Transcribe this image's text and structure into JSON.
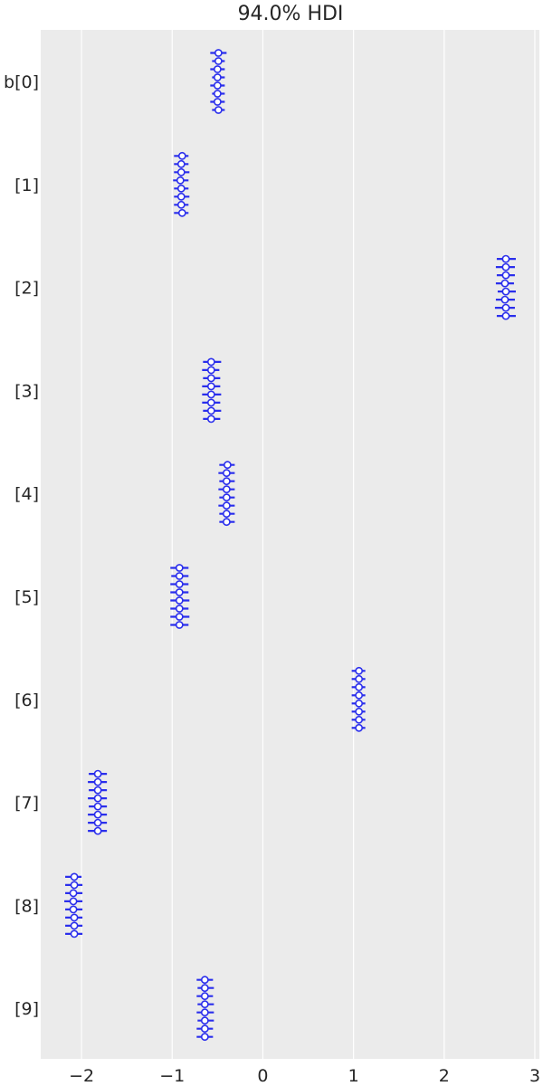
{
  "chart_data": {
    "type": "forest",
    "title": "94.0% HDI",
    "xlabel": "",
    "ylabel": "",
    "xlim": [
      -2.45,
      3.05
    ],
    "x_ticks": [
      {
        "value": -2,
        "label": "−2"
      },
      {
        "value": -1,
        "label": "−1"
      },
      {
        "value": 0,
        "label": "0"
      },
      {
        "value": 1,
        "label": "1"
      },
      {
        "value": 2,
        "label": "2"
      },
      {
        "value": 3,
        "label": "3"
      }
    ],
    "grid": true,
    "background_color": "#EBEBEB",
    "grid_color": "#FFFFFF",
    "marker_color": "#2A2EEC",
    "parameters": [
      {
        "label": "b[0]",
        "chains": [
          {
            "mean": -0.49,
            "hdi": [
              -0.58,
              -0.4
            ]
          },
          {
            "mean": -0.49,
            "hdi": [
              -0.56,
              -0.42
            ]
          },
          {
            "mean": -0.5,
            "hdi": [
              -0.58,
              -0.42
            ]
          },
          {
            "mean": -0.5,
            "hdi": [
              -0.56,
              -0.42
            ]
          },
          {
            "mean": -0.5,
            "hdi": [
              -0.58,
              -0.42
            ]
          },
          {
            "mean": -0.5,
            "hdi": [
              -0.56,
              -0.42
            ]
          },
          {
            "mean": -0.5,
            "hdi": [
              -0.58,
              -0.42
            ]
          },
          {
            "mean": -0.49,
            "hdi": [
              -0.56,
              -0.42
            ]
          }
        ]
      },
      {
        "label": "[1]",
        "chains": [
          {
            "mean": -0.89,
            "hdi": [
              -0.98,
              -0.82
            ]
          },
          {
            "mean": -0.9,
            "hdi": [
              -0.98,
              -0.82
            ]
          },
          {
            "mean": -0.9,
            "hdi": [
              -0.98,
              -0.81
            ]
          },
          {
            "mean": -0.91,
            "hdi": [
              -0.99,
              -0.82
            ]
          },
          {
            "mean": -0.9,
            "hdi": [
              -0.98,
              -0.82
            ]
          },
          {
            "mean": -0.9,
            "hdi": [
              -0.98,
              -0.81
            ]
          },
          {
            "mean": -0.9,
            "hdi": [
              -0.98,
              -0.82
            ]
          },
          {
            "mean": -0.89,
            "hdi": [
              -0.98,
              -0.82
            ]
          }
        ]
      },
      {
        "label": "[2]",
        "chains": [
          {
            "mean": 2.68,
            "hdi": [
              2.58,
              2.79
            ]
          },
          {
            "mean": 2.68,
            "hdi": [
              2.57,
              2.78
            ]
          },
          {
            "mean": 2.68,
            "hdi": [
              2.58,
              2.78
            ]
          },
          {
            "mean": 2.67,
            "hdi": [
              2.57,
              2.77
            ]
          },
          {
            "mean": 2.68,
            "hdi": [
              2.59,
              2.79
            ]
          },
          {
            "mean": 2.67,
            "hdi": [
              2.57,
              2.78
            ]
          },
          {
            "mean": 2.68,
            "hdi": [
              2.56,
              2.78
            ]
          },
          {
            "mean": 2.68,
            "hdi": [
              2.58,
              2.79
            ]
          }
        ]
      },
      {
        "label": "[3]",
        "chains": [
          {
            "mean": -0.57,
            "hdi": [
              -0.66,
              -0.46
            ]
          },
          {
            "mean": -0.57,
            "hdi": [
              -0.67,
              -0.48
            ]
          },
          {
            "mean": -0.57,
            "hdi": [
              -0.66,
              -0.47
            ]
          },
          {
            "mean": -0.57,
            "hdi": [
              -0.67,
              -0.47
            ]
          },
          {
            "mean": -0.57,
            "hdi": [
              -0.67,
              -0.46
            ]
          },
          {
            "mean": -0.57,
            "hdi": [
              -0.67,
              -0.47
            ]
          },
          {
            "mean": -0.57,
            "hdi": [
              -0.66,
              -0.46
            ]
          },
          {
            "mean": -0.57,
            "hdi": [
              -0.66,
              -0.47
            ]
          }
        ]
      },
      {
        "label": "[4]",
        "chains": [
          {
            "mean": -0.39,
            "hdi": [
              -0.48,
              -0.31
            ]
          },
          {
            "mean": -0.4,
            "hdi": [
              -0.49,
              -0.31
            ]
          },
          {
            "mean": -0.4,
            "hdi": [
              -0.48,
              -0.31
            ]
          },
          {
            "mean": -0.4,
            "hdi": [
              -0.49,
              -0.31
            ]
          },
          {
            "mean": -0.4,
            "hdi": [
              -0.48,
              -0.31
            ]
          },
          {
            "mean": -0.4,
            "hdi": [
              -0.49,
              -0.31
            ]
          },
          {
            "mean": -0.4,
            "hdi": [
              -0.48,
              -0.31
            ]
          },
          {
            "mean": -0.4,
            "hdi": [
              -0.48,
              -0.31
            ]
          }
        ]
      },
      {
        "label": "[5]",
        "chains": [
          {
            "mean": -0.92,
            "hdi": [
              -1.02,
              -0.82
            ]
          },
          {
            "mean": -0.92,
            "hdi": [
              -1.01,
              -0.82
            ]
          },
          {
            "mean": -0.92,
            "hdi": [
              -1.02,
              -0.82
            ]
          },
          {
            "mean": -0.92,
            "hdi": [
              -1.02,
              -0.82
            ]
          },
          {
            "mean": -0.92,
            "hdi": [
              -1.02,
              -0.81
            ]
          },
          {
            "mean": -0.92,
            "hdi": [
              -1.02,
              -0.82
            ]
          },
          {
            "mean": -0.92,
            "hdi": [
              -1.02,
              -0.81
            ]
          },
          {
            "mean": -0.92,
            "hdi": [
              -1.02,
              -0.82
            ]
          }
        ]
      },
      {
        "label": "[6]",
        "chains": [
          {
            "mean": 1.06,
            "hdi": [
              0.98,
              1.13
            ]
          },
          {
            "mean": 1.06,
            "hdi": [
              0.98,
              1.13
            ]
          },
          {
            "mean": 1.06,
            "hdi": [
              0.98,
              1.13
            ]
          },
          {
            "mean": 1.06,
            "hdi": [
              0.98,
              1.13
            ]
          },
          {
            "mean": 1.06,
            "hdi": [
              0.98,
              1.13
            ]
          },
          {
            "mean": 1.06,
            "hdi": [
              0.98,
              1.13
            ]
          },
          {
            "mean": 1.06,
            "hdi": [
              0.98,
              1.13
            ]
          },
          {
            "mean": 1.06,
            "hdi": [
              0.98,
              1.13
            ]
          }
        ]
      },
      {
        "label": "[7]",
        "chains": [
          {
            "mean": -1.82,
            "hdi": [
              -1.92,
              -1.72
            ]
          },
          {
            "mean": -1.82,
            "hdi": [
              -1.93,
              -1.72
            ]
          },
          {
            "mean": -1.82,
            "hdi": [
              -1.92,
              -1.72
            ]
          },
          {
            "mean": -1.82,
            "hdi": [
              -1.93,
              -1.72
            ]
          },
          {
            "mean": -1.82,
            "hdi": [
              -1.92,
              -1.72
            ]
          },
          {
            "mean": -1.82,
            "hdi": [
              -1.93,
              -1.72
            ]
          },
          {
            "mean": -1.82,
            "hdi": [
              -1.93,
              -1.72
            ]
          },
          {
            "mean": -1.82,
            "hdi": [
              -1.93,
              -1.72
            ]
          }
        ]
      },
      {
        "label": "[8]",
        "chains": [
          {
            "mean": -2.08,
            "hdi": [
              -2.18,
              -2.0
            ]
          },
          {
            "mean": -2.08,
            "hdi": [
              -2.18,
              -1.99
            ]
          },
          {
            "mean": -2.09,
            "hdi": [
              -2.18,
              -1.99
            ]
          },
          {
            "mean": -2.09,
            "hdi": [
              -2.19,
              -1.99
            ]
          },
          {
            "mean": -2.09,
            "hdi": [
              -2.18,
              -1.99
            ]
          },
          {
            "mean": -2.08,
            "hdi": [
              -2.18,
              -1.99
            ]
          },
          {
            "mean": -2.08,
            "hdi": [
              -2.18,
              -1.99
            ]
          },
          {
            "mean": -2.08,
            "hdi": [
              -2.18,
              -1.99
            ]
          }
        ]
      },
      {
        "label": "[9]",
        "chains": [
          {
            "mean": -0.64,
            "hdi": [
              -0.73,
              -0.55
            ]
          },
          {
            "mean": -0.64,
            "hdi": [
              -0.72,
              -0.54
            ]
          },
          {
            "mean": -0.64,
            "hdi": [
              -0.73,
              -0.55
            ]
          },
          {
            "mean": -0.64,
            "hdi": [
              -0.72,
              -0.54
            ]
          },
          {
            "mean": -0.64,
            "hdi": [
              -0.73,
              -0.54
            ]
          },
          {
            "mean": -0.64,
            "hdi": [
              -0.72,
              -0.54
            ]
          },
          {
            "mean": -0.64,
            "hdi": [
              -0.73,
              -0.55
            ]
          },
          {
            "mean": -0.64,
            "hdi": [
              -0.73,
              -0.55
            ]
          }
        ]
      }
    ]
  }
}
